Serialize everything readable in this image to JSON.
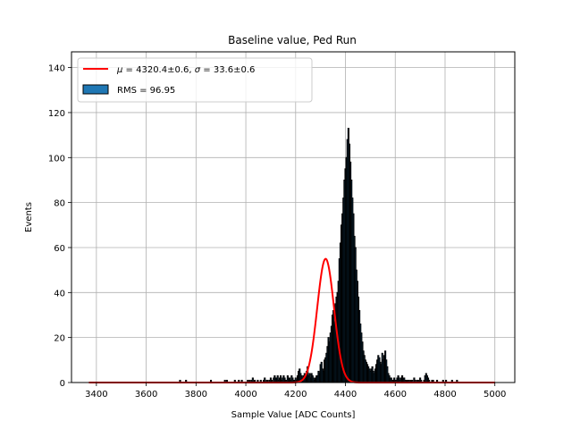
{
  "chart_data": {
    "type": "histogram",
    "title": "Baseline value, Ped Run",
    "xlabel": "Sample Value [ADC Counts]",
    "ylabel": "Events",
    "xlim": [
      3300,
      5080
    ],
    "ylim": [
      0,
      147
    ],
    "xticks": [
      3400,
      3600,
      3800,
      4000,
      4200,
      4400,
      4600,
      4800,
      5000
    ],
    "yticks": [
      0,
      20,
      40,
      60,
      80,
      100,
      120,
      140
    ],
    "grid": true,
    "legend_position": "top-left",
    "legend": [
      {
        "label": "$\\mu = $4320.4±0.6, $\\sigma = $33.6±0.6",
        "style": "line",
        "color": "#ff0000"
      },
      {
        "label": "RMS = 96.95",
        "style": "patch",
        "color": "#1f77b4"
      }
    ],
    "histogram": {
      "bin_start": 3370,
      "bin_width": 4,
      "color": "#1f77b4",
      "edgecolor": "#000000",
      "counts": [
        0,
        0,
        0,
        0,
        0,
        0,
        0,
        0,
        0,
        0,
        0,
        0,
        0,
        0,
        0,
        0,
        0,
        0,
        0,
        0,
        0,
        0,
        0,
        0,
        0,
        0,
        0,
        0,
        0,
        0,
        0,
        0,
        0,
        0,
        0,
        0,
        0,
        0,
        0,
        0,
        0,
        0,
        0,
        0,
        0,
        0,
        0,
        0,
        0,
        0,
        0,
        0,
        0,
        0,
        0,
        0,
        0,
        0,
        0,
        0,
        0,
        0,
        0,
        0,
        0,
        0,
        0,
        0,
        0,
        0,
        0,
        0,
        0,
        0,
        0,
        0,
        0,
        0,
        0,
        0,
        0,
        0,
        0,
        0,
        0,
        0,
        0,
        0,
        0,
        0,
        0,
        1,
        0,
        0,
        0,
        0,
        0,
        1,
        0,
        0,
        0,
        0,
        0,
        0,
        0,
        0,
        0,
        0,
        0,
        0,
        0,
        0,
        0,
        0,
        0,
        0,
        0,
        0,
        0,
        0,
        0,
        0,
        1,
        0,
        0,
        0,
        0,
        0,
        0,
        0,
        0,
        0,
        0,
        0,
        0,
        0,
        1,
        0,
        1,
        0,
        0,
        0,
        0,
        0,
        0,
        0,
        1,
        0,
        0,
        0,
        1,
        0,
        0,
        1,
        0,
        0,
        0,
        0,
        0,
        1,
        0,
        1,
        0,
        1,
        2,
        0,
        1,
        0,
        0,
        1,
        0,
        0,
        1,
        0,
        0,
        1,
        2,
        0,
        1,
        1,
        0,
        1,
        2,
        1,
        0,
        2,
        3,
        2,
        2,
        3,
        1,
        2,
        3,
        1,
        2,
        3,
        2,
        1,
        1,
        3,
        2,
        2,
        1,
        3,
        2,
        1,
        1,
        2,
        1,
        3,
        5,
        6,
        4,
        3,
        2,
        3,
        4,
        2,
        5,
        7,
        3,
        4,
        2,
        4,
        3,
        2,
        1,
        2,
        3,
        3,
        5,
        4,
        8,
        9,
        6,
        5,
        10,
        11,
        13,
        16,
        20,
        18,
        22,
        25,
        30,
        32,
        27,
        35,
        38,
        40,
        45,
        55,
        62,
        70,
        75,
        82,
        90,
        95,
        100,
        108,
        113,
        106,
        98,
        90,
        82,
        75,
        65,
        60,
        50,
        45,
        38,
        32,
        26,
        22,
        18,
        14,
        12,
        10,
        9,
        8,
        7,
        6,
        5,
        6,
        7,
        5,
        4,
        6,
        8,
        10,
        12,
        11,
        9,
        8,
        13,
        10,
        12,
        14,
        10,
        7,
        4,
        3,
        2,
        2,
        1,
        1,
        2,
        1,
        1,
        2,
        3,
        2,
        1,
        2,
        3,
        2,
        2,
        1,
        1,
        1,
        1,
        1,
        0,
        1,
        1,
        0,
        2,
        1,
        0,
        1,
        1,
        0,
        2,
        1,
        0,
        0,
        1,
        3,
        4,
        3,
        2,
        1,
        0,
        0,
        1,
        1,
        0,
        0,
        0,
        1,
        0,
        0,
        0,
        0,
        0,
        1,
        0,
        0,
        1,
        0,
        0,
        0,
        0,
        0,
        1,
        0,
        0,
        0,
        0,
        1,
        0,
        0,
        0,
        0,
        0,
        0,
        0,
        0,
        0,
        0,
        0,
        0,
        0,
        0,
        0,
        0,
        0,
        0,
        0,
        0,
        0,
        0,
        0,
        0,
        0,
        0,
        0,
        0,
        0,
        0,
        0,
        0,
        0,
        0,
        0,
        0,
        0,
        0,
        0,
        0,
        0,
        0,
        0,
        0,
        0,
        0,
        0,
        0,
        0,
        0,
        0,
        0,
        0,
        0,
        0,
        0,
        0,
        0,
        0,
        0,
        0,
        0,
        0,
        0,
        0,
        0,
        0,
        0,
        0,
        0,
        0,
        0,
        0,
        0,
        0,
        0,
        0,
        0,
        0,
        0,
        0,
        0,
        0,
        0,
        0,
        0,
        0,
        0,
        0,
        0,
        0,
        0,
        0,
        0,
        0,
        0,
        0
      ]
    },
    "fit": {
      "type": "gaussian",
      "mu": 4320.4,
      "sigma": 33.6,
      "amplitude": 55,
      "x_range": [
        3370,
        5000
      ],
      "color": "#ff0000"
    },
    "stats": {
      "mu": "4320.4±0.6",
      "sigma": "33.6±0.6",
      "rms": "96.95"
    }
  }
}
